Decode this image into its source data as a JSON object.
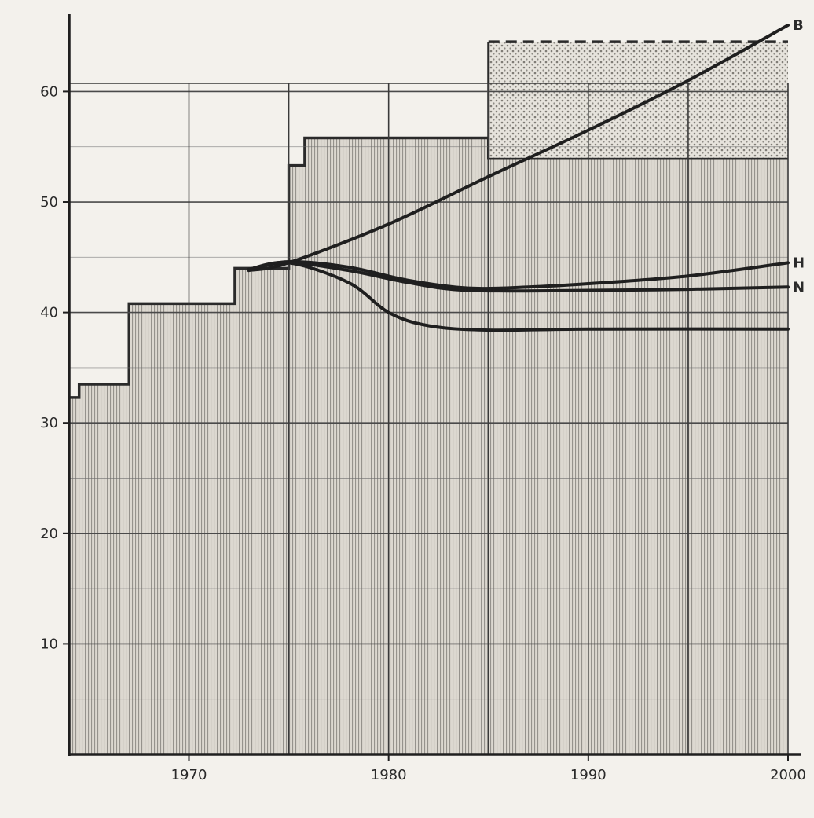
{
  "chart_data": {
    "type": "line",
    "title": "",
    "xlabel": "",
    "ylabel": "",
    "xlim": [
      1964,
      2000
    ],
    "ylim": [
      0,
      67
    ],
    "grid": true,
    "x_ticks": [
      "1970",
      "1980",
      "1990",
      "2000"
    ],
    "y_ticks": [
      "10",
      "20",
      "30",
      "40",
      "50",
      "60"
    ],
    "step_bands": [
      {
        "name": "",
        "steps": [
          {
            "x0": 1964,
            "x1": 1964.5,
            "y": 32.3
          },
          {
            "x0": 1964.5,
            "x1": 1967.0,
            "y": 33.5
          },
          {
            "x0": 1967.0,
            "x1": 1972.3,
            "y": 40.8
          },
          {
            "x0": 1972.3,
            "x1": 1975.0,
            "y": 44.0
          },
          {
            "x0": 1975.0,
            "x1": 1975.8,
            "y": 53.3
          },
          {
            "x0": 1975.8,
            "x1": 1985.0,
            "y": 55.8
          },
          {
            "x0": 1985.0,
            "x1": 2000.0,
            "y": 54.0
          }
        ]
      },
      {
        "name": "",
        "steps": [
          {
            "x0": 1985.0,
            "x1": 2000.0,
            "y": 64.5
          }
        ],
        "base": 54.0,
        "top_dashed": true
      }
    ],
    "series": [
      {
        "name": "B",
        "x": [
          1973,
          1975,
          1980,
          1985,
          1990,
          1995,
          2000
        ],
        "y": [
          43.8,
          44.5,
          48.0,
          52.3,
          56.5,
          61.0,
          66.0
        ]
      },
      {
        "name": "H",
        "x": [
          1973,
          1975,
          1978,
          1981,
          1984,
          1987,
          1990,
          1995,
          2000
        ],
        "y": [
          43.9,
          44.6,
          44.1,
          42.9,
          42.2,
          42.3,
          42.6,
          43.3,
          44.5
        ]
      },
      {
        "name": "N",
        "x": [
          1973,
          1975,
          1978,
          1981,
          1984,
          1990,
          1995,
          2000
        ],
        "y": [
          43.9,
          44.5,
          43.8,
          42.7,
          42.0,
          42.0,
          42.1,
          42.3
        ]
      },
      {
        "name": "",
        "x": [
          1973,
          1975,
          1978,
          1980,
          1982,
          1985,
          1990,
          2000
        ],
        "y": [
          43.9,
          44.5,
          42.7,
          40.0,
          38.8,
          38.4,
          38.5,
          38.5
        ]
      }
    ]
  }
}
